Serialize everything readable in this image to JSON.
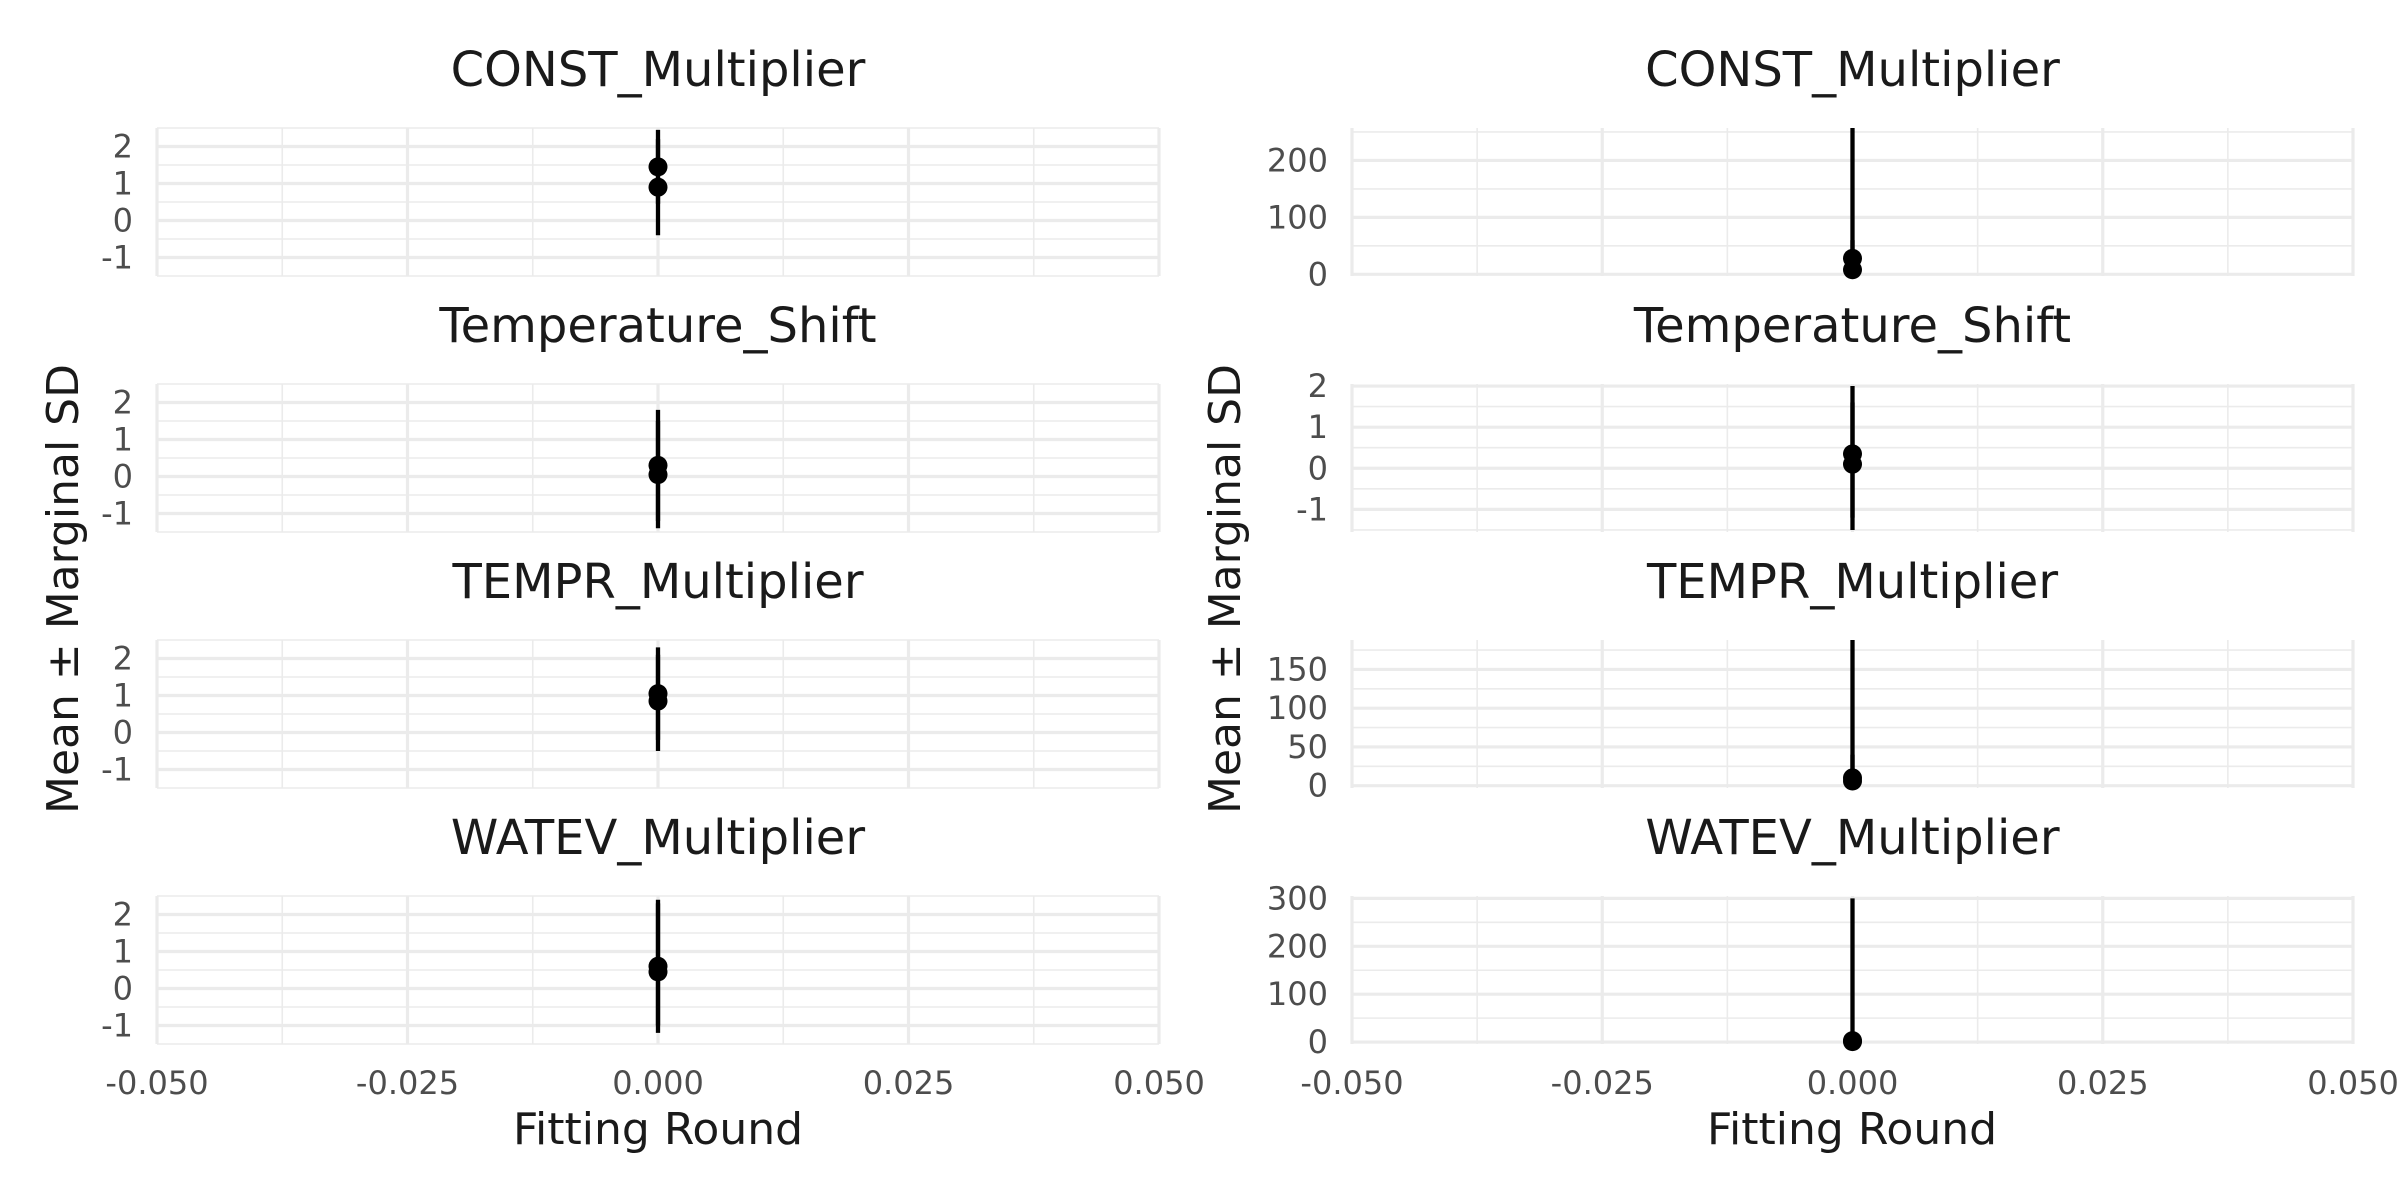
{
  "figure": {
    "x_title": "Fitting Round",
    "y_title": "Mean ± Marginal SD"
  },
  "chart_data": [
    {
      "type": "scatter",
      "columns": [
        "left",
        "right"
      ],
      "xlim": [
        -0.05,
        0.05
      ],
      "x_ticks": [
        "-0.050",
        "-0.025",
        "0.000",
        "0.025",
        "0.050"
      ],
      "xlabel": "Fitting Round",
      "ylabel": "Mean ± Marginal SD",
      "grid": true,
      "legend": "none",
      "panels": [
        {
          "column": "left",
          "row": 0,
          "title": "CONST_Multiplier",
          "ylim": [
            -1.5,
            2.5
          ],
          "y_ticks": [
            -1,
            0,
            1,
            2
          ],
          "points": [
            {
              "x": 0,
              "y": 1.45,
              "ymin": 0.45,
              "ymax": 2.45
            },
            {
              "x": 0,
              "y": 0.9,
              "ymin": -0.4,
              "ymax": 2.2
            }
          ]
        },
        {
          "column": "left",
          "row": 1,
          "title": "Temperature_Shift",
          "ylim": [
            -1.5,
            2.5
          ],
          "y_ticks": [
            -1,
            0,
            1,
            2
          ],
          "points": [
            {
              "x": 0,
              "y": 0.3,
              "ymin": -1.2,
              "ymax": 1.8
            },
            {
              "x": 0,
              "y": 0.05,
              "ymin": -1.4,
              "ymax": 1.5
            }
          ]
        },
        {
          "column": "left",
          "row": 2,
          "title": "TEMPR_Multiplier",
          "ylim": [
            -1.5,
            2.5
          ],
          "y_ticks": [
            -1,
            0,
            1,
            2
          ],
          "points": [
            {
              "x": 0,
              "y": 1.05,
              "ymin": -0.2,
              "ymax": 2.3
            },
            {
              "x": 0,
              "y": 0.85,
              "ymin": -0.5,
              "ymax": 2.1
            }
          ]
        },
        {
          "column": "left",
          "row": 3,
          "title": "WATEV_Multiplier",
          "ylim": [
            -1.5,
            2.5
          ],
          "y_ticks": [
            -1,
            0,
            1,
            2
          ],
          "points": [
            {
              "x": 0,
              "y": 0.6,
              "ymin": -1.2,
              "ymax": 2.4
            },
            {
              "x": 0,
              "y": 0.45,
              "ymin": -1.0,
              "ymax": 2.3
            }
          ]
        },
        {
          "column": "right",
          "row": 0,
          "title": "CONST_Multiplier",
          "ylim": [
            -3,
            257
          ],
          "y_ticks": [
            0,
            100,
            200
          ],
          "points": [
            {
              "x": 0,
              "y": 28,
              "ymin": 0,
              "ymax": 257
            },
            {
              "x": 0,
              "y": 8,
              "ymin": 0,
              "ymax": 60
            }
          ]
        },
        {
          "column": "right",
          "row": 1,
          "title": "Temperature_Shift",
          "ylim": [
            -1.55,
            2.05
          ],
          "y_ticks": [
            -1,
            0,
            1,
            2
          ],
          "points": [
            {
              "x": 0,
              "y": 0.35,
              "ymin": -1.5,
              "ymax": 2.0
            },
            {
              "x": 0,
              "y": 0.1,
              "ymin": -1.2,
              "ymax": 1.6
            }
          ]
        },
        {
          "column": "right",
          "row": 2,
          "title": "TEMPR_Multiplier",
          "ylim": [
            -3,
            188
          ],
          "y_ticks": [
            0,
            50,
            100,
            150
          ],
          "points": [
            {
              "x": 0,
              "y": 10,
              "ymin": 0,
              "ymax": 188
            },
            {
              "x": 0,
              "y": 6,
              "ymin": 0,
              "ymax": 40
            }
          ]
        },
        {
          "column": "right",
          "row": 3,
          "title": "WATEV_Multiplier",
          "ylim": [
            -4,
            305
          ],
          "y_ticks": [
            0,
            100,
            200,
            300
          ],
          "points": [
            {
              "x": 0,
              "y": 3,
              "ymin": 0,
              "ymax": 300
            },
            {
              "x": 0,
              "y": 1,
              "ymin": 0,
              "ymax": 20
            }
          ]
        }
      ]
    }
  ]
}
